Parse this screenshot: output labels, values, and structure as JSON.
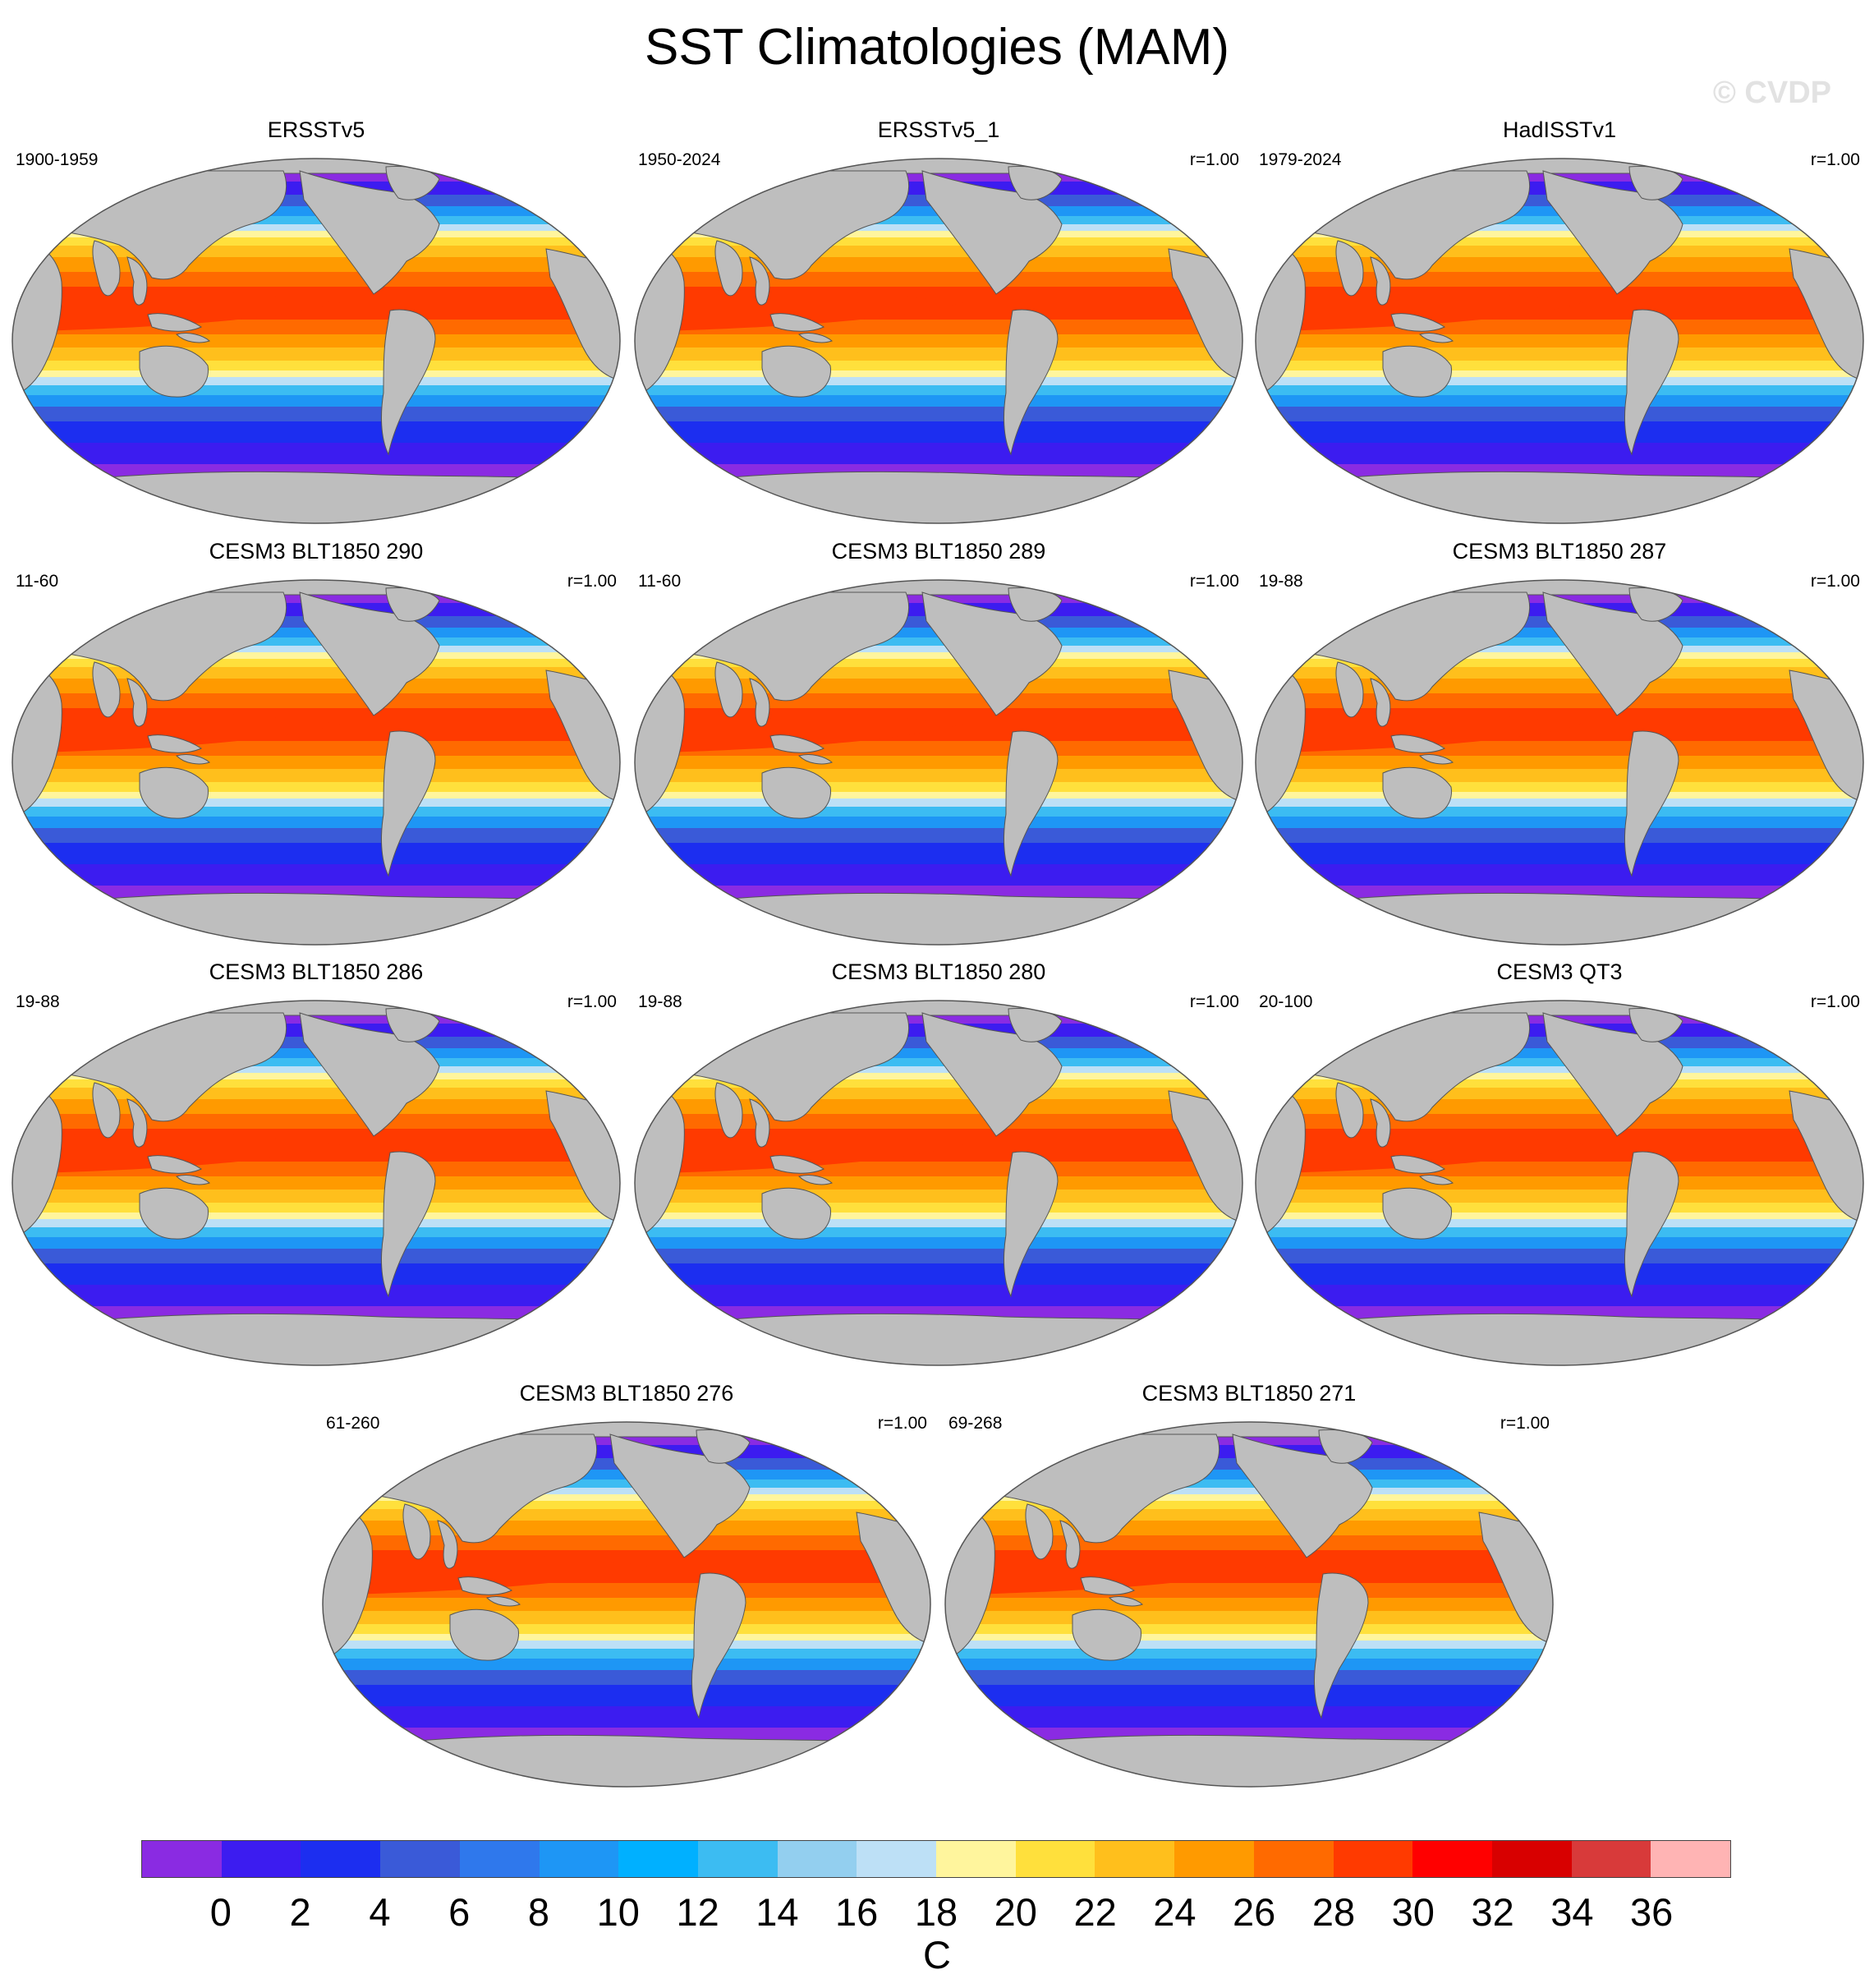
{
  "figure": {
    "title": "SST Climatologies (MAM)",
    "watermark": "© CVDP"
  },
  "panels": [
    {
      "title": "ERSSTv5",
      "period": "1900-1959",
      "corr": ""
    },
    {
      "title": "ERSSTv5_1",
      "period": "1950-2024",
      "corr": "r=1.00"
    },
    {
      "title": "HadISSTv1",
      "period": "1979-2024",
      "corr": "r=1.00"
    },
    {
      "title": "CESM3 BLT1850 290",
      "period": "11-60",
      "corr": "r=1.00"
    },
    {
      "title": "CESM3 BLT1850 289",
      "period": "11-60",
      "corr": "r=1.00"
    },
    {
      "title": "CESM3 BLT1850 287",
      "period": "19-88",
      "corr": "r=1.00"
    },
    {
      "title": "CESM3 BLT1850 286",
      "period": "19-88",
      "corr": "r=1.00"
    },
    {
      "title": "CESM3 BLT1850 280",
      "period": "19-88",
      "corr": "r=1.00"
    },
    {
      "title": "CESM3 QT3",
      "period": "20-100",
      "corr": "r=1.00"
    },
    {
      "title": "CESM3 BLT1850 276",
      "period": "61-260",
      "corr": "r=1.00"
    },
    {
      "title": "CESM3 BLT1850 271",
      "period": "69-268",
      "corr": "r=1.00"
    }
  ],
  "colorbar": {
    "unit": "C",
    "labels": [
      "0",
      "2",
      "4",
      "6",
      "8",
      "10",
      "12",
      "14",
      "16",
      "18",
      "20",
      "22",
      "24",
      "26",
      "28",
      "30",
      "32",
      "34",
      "36"
    ],
    "colors": [
      "#8a2be2",
      "#3c1cf0",
      "#1c2ef0",
      "#3a5ad8",
      "#2f78ec",
      "#1e96f5",
      "#00b0ff",
      "#3cbcf2",
      "#93cfef",
      "#bde0f6",
      "#fff59d",
      "#ffe03c",
      "#ffbf1c",
      "#ff9a00",
      "#ff6a00",
      "#ff3a00",
      "#ff0000",
      "#d80000",
      "#d83a3a",
      "#ffb4b4"
    ]
  }
}
